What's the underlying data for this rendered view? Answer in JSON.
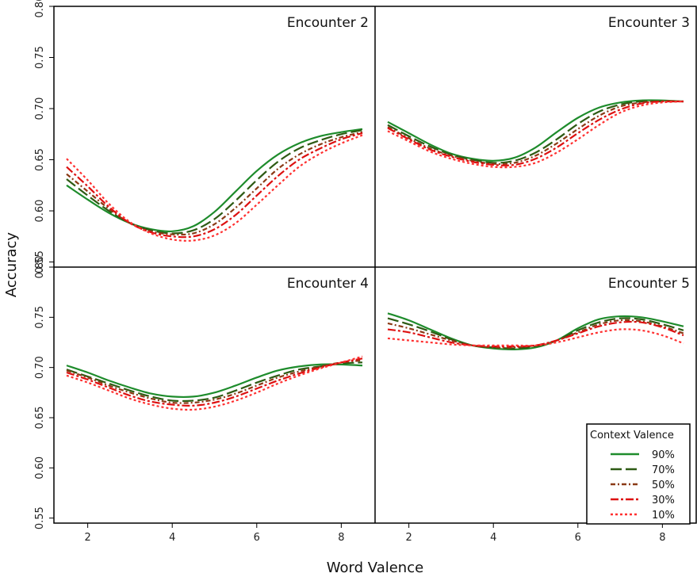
{
  "figure": {
    "xlabel": "Word Valence",
    "ylabel": "Accuracy",
    "legend_title": "Context Valence"
  },
  "chart_data": {
    "type": "line",
    "layout": "2x2 facet grid, shared axes",
    "title": "",
    "xlabel": "Word Valence",
    "ylabel": "Accuracy",
    "xlim": [
      1.2,
      8.8
    ],
    "xticks": [
      2,
      4,
      6,
      8
    ],
    "x_tick_labels": [
      "2",
      "4",
      "6",
      "8"
    ],
    "ylim": [
      0.545,
      0.8
    ],
    "yticks": [
      0.55,
      0.6,
      0.65,
      0.7,
      0.75,
      0.8
    ],
    "y_tick_labels": [
      "0.55",
      "0.60",
      "0.65",
      "0.70",
      "0.75",
      "0.80"
    ],
    "grid": false,
    "legend_placement": "bottom-right",
    "legend_title": "Context Valence",
    "series_styles": [
      {
        "name": "90%",
        "color": "#1e8c2c",
        "dash": "solid"
      },
      {
        "name": "70%",
        "color": "#2e5b14",
        "dash": "longdash"
      },
      {
        "name": "50%",
        "color": "#8a3a16",
        "dash": "dashdot"
      },
      {
        "name": "30%",
        "color": "#dd1010",
        "dash": "longdashdot"
      },
      {
        "name": "10%",
        "color": "#ff3030",
        "dash": "dotted"
      }
    ],
    "x": [
      1.5,
      2,
      2.5,
      3,
      3.5,
      4,
      4.5,
      5,
      5.5,
      6,
      6.5,
      7,
      7.5,
      8,
      8.5
    ],
    "panels": [
      {
        "title": "Encounter 2",
        "series": [
          {
            "name": "90%",
            "values": [
              0.625,
              0.611,
              0.598,
              0.588,
              0.582,
              0.58,
              0.585,
              0.599,
              0.619,
              0.639,
              0.655,
              0.666,
              0.673,
              0.677,
              0.68
            ]
          },
          {
            "name": "70%",
            "values": [
              0.631,
              0.615,
              0.6,
              0.588,
              0.581,
              0.578,
              0.581,
              0.592,
              0.61,
              0.63,
              0.648,
              0.661,
              0.669,
              0.675,
              0.679
            ]
          },
          {
            "name": "50%",
            "values": [
              0.636,
              0.619,
              0.602,
              0.588,
              0.58,
              0.577,
              0.578,
              0.587,
              0.603,
              0.622,
              0.641,
              0.655,
              0.665,
              0.672,
              0.677
            ]
          },
          {
            "name": "30%",
            "values": [
              0.643,
              0.624,
              0.604,
              0.588,
              0.579,
              0.575,
              0.575,
              0.582,
              0.596,
              0.615,
              0.634,
              0.65,
              0.661,
              0.67,
              0.676
            ]
          },
          {
            "name": "10%",
            "values": [
              0.651,
              0.63,
              0.607,
              0.589,
              0.578,
              0.572,
              0.571,
              0.576,
              0.588,
              0.606,
              0.625,
              0.643,
              0.656,
              0.666,
              0.674
            ]
          }
        ]
      },
      {
        "title": "Encounter 3",
        "series": [
          {
            "name": "90%",
            "values": [
              0.687,
              0.676,
              0.665,
              0.656,
              0.651,
              0.649,
              0.652,
              0.662,
              0.677,
              0.691,
              0.701,
              0.706,
              0.708,
              0.708,
              0.707
            ]
          },
          {
            "name": "70%",
            "values": [
              0.684,
              0.673,
              0.663,
              0.655,
              0.65,
              0.647,
              0.649,
              0.657,
              0.67,
              0.685,
              0.697,
              0.704,
              0.707,
              0.707,
              0.707
            ]
          },
          {
            "name": "50%",
            "values": [
              0.682,
              0.671,
              0.661,
              0.654,
              0.649,
              0.646,
              0.647,
              0.654,
              0.666,
              0.68,
              0.693,
              0.702,
              0.706,
              0.707,
              0.707
            ]
          },
          {
            "name": "30%",
            "values": [
              0.681,
              0.67,
              0.66,
              0.653,
              0.648,
              0.645,
              0.645,
              0.651,
              0.662,
              0.676,
              0.689,
              0.699,
              0.705,
              0.707,
              0.707
            ]
          },
          {
            "name": "10%",
            "values": [
              0.678,
              0.668,
              0.658,
              0.651,
              0.646,
              0.643,
              0.643,
              0.647,
              0.657,
              0.67,
              0.684,
              0.696,
              0.703,
              0.706,
              0.707
            ]
          }
        ]
      },
      {
        "title": "Encounter 4",
        "series": [
          {
            "name": "90%",
            "values": [
              0.702,
              0.695,
              0.687,
              0.68,
              0.674,
              0.671,
              0.671,
              0.675,
              0.682,
              0.69,
              0.697,
              0.701,
              0.703,
              0.703,
              0.702
            ]
          },
          {
            "name": "70%",
            "values": [
              0.698,
              0.691,
              0.684,
              0.677,
              0.671,
              0.667,
              0.667,
              0.67,
              0.677,
              0.685,
              0.692,
              0.698,
              0.701,
              0.704,
              0.705
            ]
          },
          {
            "name": "50%",
            "values": [
              0.697,
              0.69,
              0.682,
              0.675,
              0.669,
              0.665,
              0.665,
              0.668,
              0.674,
              0.682,
              0.69,
              0.696,
              0.701,
              0.705,
              0.707
            ]
          },
          {
            "name": "30%",
            "values": [
              0.695,
              0.688,
              0.68,
              0.672,
              0.666,
              0.663,
              0.662,
              0.665,
              0.671,
              0.679,
              0.687,
              0.694,
              0.7,
              0.705,
              0.709
            ]
          },
          {
            "name": "10%",
            "values": [
              0.692,
              0.685,
              0.677,
              0.669,
              0.663,
              0.659,
              0.658,
              0.661,
              0.667,
              0.675,
              0.684,
              0.692,
              0.699,
              0.705,
              0.711
            ]
          }
        ]
      },
      {
        "title": "Encounter 5",
        "series": [
          {
            "name": "90%",
            "values": [
              0.754,
              0.747,
              0.738,
              0.729,
              0.722,
              0.719,
              0.718,
              0.72,
              0.727,
              0.739,
              0.748,
              0.751,
              0.75,
              0.746,
              0.741
            ]
          },
          {
            "name": "70%",
            "values": [
              0.749,
              0.743,
              0.736,
              0.728,
              0.722,
              0.72,
              0.719,
              0.721,
              0.727,
              0.737,
              0.745,
              0.749,
              0.748,
              0.743,
              0.737
            ]
          },
          {
            "name": "50%",
            "values": [
              0.744,
              0.739,
              0.733,
              0.727,
              0.722,
              0.72,
              0.72,
              0.722,
              0.727,
              0.735,
              0.743,
              0.747,
              0.746,
              0.741,
              0.734
            ]
          },
          {
            "name": "30%",
            "values": [
              0.738,
              0.735,
              0.73,
              0.725,
              0.722,
              0.721,
              0.721,
              0.722,
              0.727,
              0.734,
              0.741,
              0.745,
              0.745,
              0.74,
              0.732
            ]
          },
          {
            "name": "10%",
            "values": [
              0.729,
              0.727,
              0.725,
              0.723,
              0.722,
              0.722,
              0.722,
              0.722,
              0.725,
              0.73,
              0.735,
              0.738,
              0.737,
              0.732,
              0.724
            ]
          }
        ]
      }
    ]
  }
}
